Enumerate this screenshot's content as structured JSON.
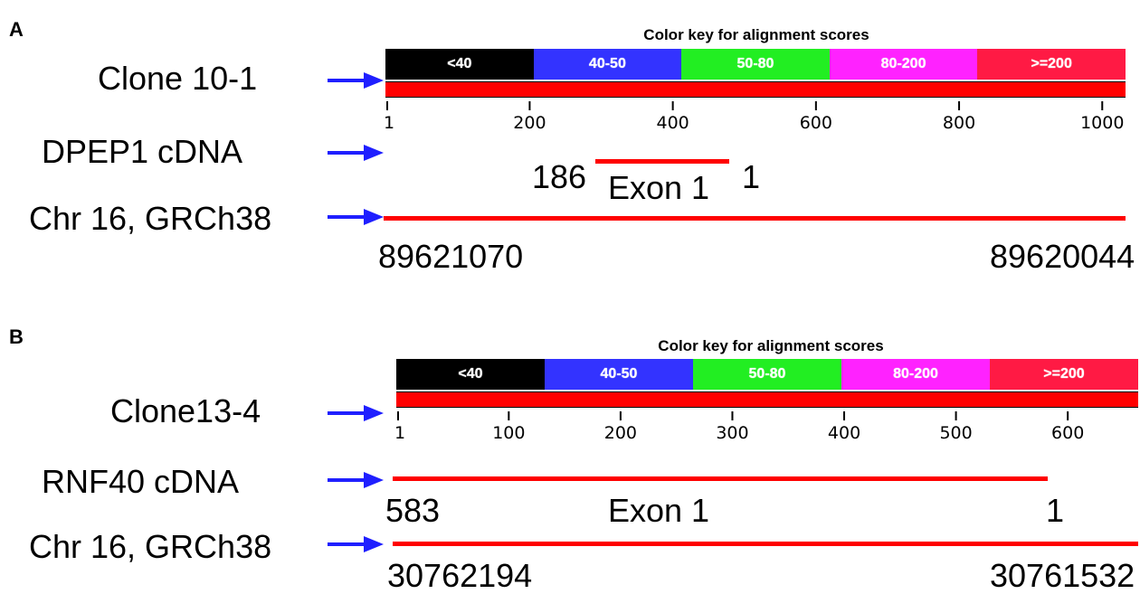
{
  "colors": {
    "arrow": "#1f1fff",
    "alignment_line": "#ff0000",
    "key_black": "#000000",
    "key_blue": "#3333ff",
    "key_green": "#22ee22",
    "key_magenta": "#ff22ff",
    "key_red": "#ff1a44"
  },
  "panels": [
    {
      "letter": "A",
      "key_title": "Color key for alignment scores",
      "key": [
        {
          "label": "<40",
          "color": "#000000"
        },
        {
          "label": "40-50",
          "color": "#3333ff"
        },
        {
          "label": "50-80",
          "color": "#22ee22"
        },
        {
          "label": "80-200",
          "color": "#ff22ff"
        },
        {
          "label": ">=200",
          "color": "#ff1a44"
        }
      ],
      "query_label": "Clone 10-1",
      "axis": {
        "min": 1,
        "max": 1030,
        "ticks": [
          1,
          200,
          400,
          600,
          800,
          1000
        ]
      },
      "cdna": {
        "label": "DPEP1 cDNA",
        "left_label": "186",
        "exon_label": "Exon 1",
        "right_label": "1",
        "span": [
          288,
          474
        ]
      },
      "chr": {
        "label": "Chr 16, GRCh38",
        "start_label": "89621070",
        "end_label": "89620044"
      }
    },
    {
      "letter": "B",
      "key_title": "Color key for alignment scores",
      "key": [
        {
          "label": "<40",
          "color": "#000000"
        },
        {
          "label": "40-50",
          "color": "#3333ff"
        },
        {
          "label": "50-80",
          "color": "#22ee22"
        },
        {
          "label": "80-200",
          "color": "#ff22ff"
        },
        {
          "label": ">=200",
          "color": "#ff1a44"
        }
      ],
      "query_label": "Clone13-4",
      "axis": {
        "min": 1,
        "max": 663,
        "ticks": [
          1,
          100,
          200,
          300,
          400,
          500,
          600
        ]
      },
      "cdna": {
        "label": "RNF40 cDNA",
        "left_label": "583",
        "exon_label": "Exon 1",
        "right_label": "1",
        "span": [
          1,
          583
        ]
      },
      "chr": {
        "label": "Chr 16, GRCh38",
        "start_label": "30762194",
        "end_label": "30761532"
      }
    }
  ]
}
